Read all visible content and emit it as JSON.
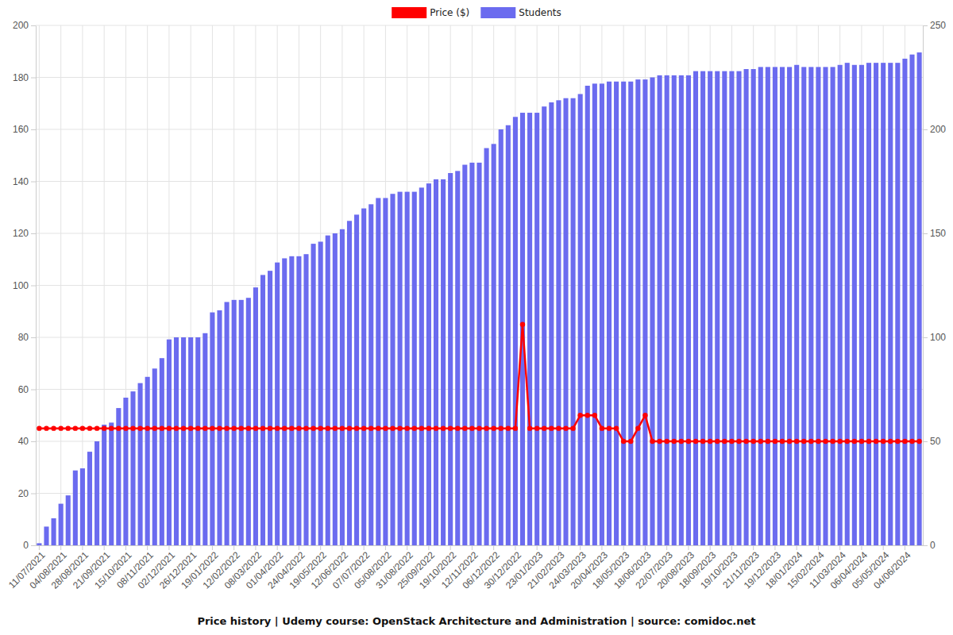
{
  "chart_data": {
    "type": "bar",
    "title": "Price history | Udemy course: OpenStack Architecture and Administration | source: comidoc.net",
    "categories": [
      "11/07/2021",
      null,
      null,
      "04/08/2021",
      null,
      null,
      "28/08/2021",
      null,
      null,
      "21/09/2021",
      null,
      null,
      "15/10/2021",
      null,
      null,
      "08/11/2021",
      null,
      null,
      "02/12/2021",
      null,
      null,
      "26/12/2021",
      null,
      null,
      "19/01/2022",
      null,
      null,
      "12/02/2022",
      null,
      null,
      "08/03/2022",
      null,
      null,
      "01/04/2022",
      null,
      null,
      "24/04/2022",
      null,
      null,
      "19/05/2022",
      null,
      null,
      "12/06/2022",
      null,
      null,
      "07/07/2022",
      null,
      null,
      "05/08/2022",
      null,
      null,
      "31/08/2022",
      null,
      null,
      "25/09/2022",
      null,
      null,
      "19/10/2022",
      null,
      null,
      "12/11/2022",
      null,
      null,
      "06/12/2022",
      null,
      null,
      "30/12/2022",
      null,
      null,
      "23/01/2023",
      null,
      null,
      "21/02/2023",
      null,
      null,
      "24/03/2023",
      null,
      null,
      "20/04/2023",
      null,
      null,
      "18/05/2023",
      null,
      null,
      "18/06/2023",
      null,
      null,
      "22/07/2023",
      null,
      null,
      "20/08/2023",
      null,
      null,
      "18/09/2023",
      null,
      null,
      "19/10/2023",
      null,
      null,
      "21/11/2023",
      null,
      null,
      "19/12/2023",
      null,
      null,
      "18/01/2024",
      null,
      null,
      "15/02/2024",
      null,
      null,
      "11/03/2024",
      null,
      null,
      "06/04/2024",
      null,
      null,
      "05/05/2024",
      null,
      null,
      "04/06/2024",
      null,
      null
    ],
    "series": [
      {
        "name": "Price ($)",
        "type": "line",
        "color": "#ff0000",
        "marker": "circle",
        "line_style": "solid",
        "values": [
          45,
          45,
          45,
          45,
          45,
          45,
          45,
          45,
          45,
          45,
          45,
          45,
          45,
          45,
          45,
          45,
          45,
          45,
          45,
          45,
          45,
          45,
          45,
          45,
          45,
          45,
          45,
          45,
          45,
          45,
          45,
          45,
          45,
          45,
          45,
          45,
          45,
          45,
          45,
          45,
          45,
          45,
          45,
          45,
          45,
          45,
          45,
          45,
          45,
          45,
          45,
          45,
          45,
          45,
          45,
          45,
          45,
          45,
          45,
          45,
          45,
          45,
          45,
          45,
          45,
          45,
          45,
          85,
          45,
          45,
          45,
          45,
          45,
          45,
          45,
          50,
          50,
          50,
          45,
          45,
          45,
          40,
          40,
          45,
          50,
          40,
          40,
          40,
          40,
          40,
          40,
          40,
          40,
          40,
          40,
          40,
          40,
          40,
          40,
          40,
          40,
          40,
          40,
          40,
          40,
          40,
          40,
          40,
          40,
          40,
          40,
          40,
          40,
          40,
          40,
          40,
          40,
          40,
          40,
          40,
          40,
          40,
          40
        ]
      },
      {
        "name": "Students",
        "type": "bar",
        "color": "#6b6bef",
        "axis": "y2",
        "values": [
          1,
          9,
          13,
          20,
          24,
          36,
          37,
          45,
          50,
          58,
          59,
          66,
          71,
          74,
          78,
          81,
          85,
          90,
          99,
          100,
          100,
          100,
          100,
          102,
          112,
          113,
          117,
          118,
          118,
          119,
          124,
          130,
          132,
          136,
          138,
          139,
          139,
          140,
          145,
          146,
          149,
          150,
          152,
          156,
          159,
          162,
          164,
          167,
          167,
          169,
          170,
          170,
          170,
          172,
          174,
          176,
          176,
          179,
          180,
          183,
          184,
          184,
          191,
          193,
          200,
          202,
          206,
          208,
          208,
          208,
          211,
          213,
          214,
          215,
          215,
          217,
          221,
          222,
          222,
          223,
          223,
          223,
          223,
          224,
          224,
          225,
          226,
          226,
          226,
          226,
          226,
          228,
          228,
          228,
          228,
          228,
          228,
          228,
          229,
          229,
          230,
          230,
          230,
          230,
          230,
          231,
          230,
          230,
          230,
          230,
          230,
          231,
          232,
          231,
          231,
          232,
          232,
          232,
          232,
          232,
          234,
          236,
          237
        ]
      }
    ],
    "ylim": [
      0,
      200
    ],
    "yticks": [
      0,
      20,
      40,
      60,
      80,
      100,
      120,
      140,
      160,
      180,
      200
    ],
    "y2lim": [
      0,
      250
    ],
    "y2ticks": [
      0,
      50,
      100,
      150,
      200,
      250
    ],
    "grid": true,
    "legend": "top"
  }
}
